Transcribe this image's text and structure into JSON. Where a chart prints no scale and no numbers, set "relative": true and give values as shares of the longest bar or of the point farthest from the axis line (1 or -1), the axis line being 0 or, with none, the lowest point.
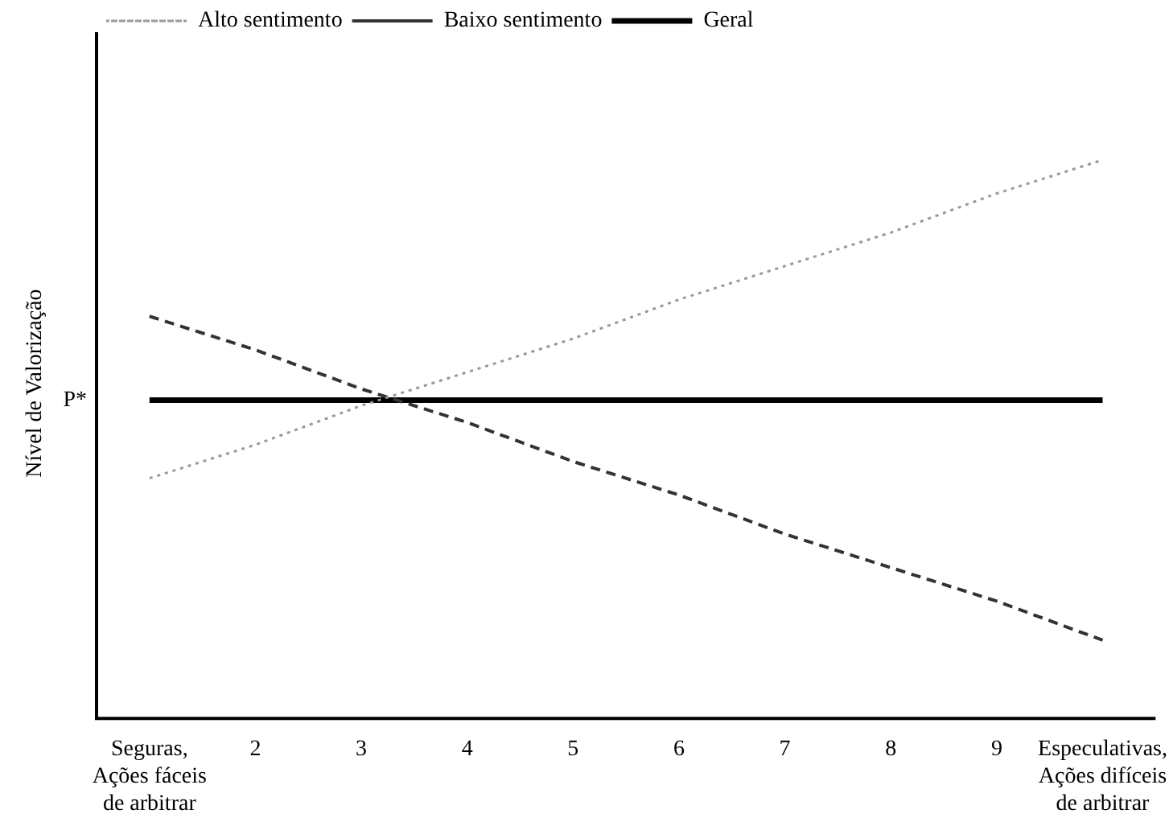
{
  "chart_data": {
    "type": "line",
    "relative": true,
    "ylabel": "Nível de Valorização",
    "categories": [
      "Seguras, Ações fáceis de arbitrar",
      "2",
      "3",
      "4",
      "5",
      "6",
      "7",
      "8",
      "9",
      "Especulativas, Ações difíceis de arbitrar"
    ],
    "series": [
      {
        "name": "Alto sentimento",
        "color": "#999999",
        "line_style": "dotted",
        "values": [
          0.43,
          0.49,
          0.56,
          0.62,
          0.68,
          0.75,
          0.81,
          0.87,
          0.94,
          1.0
        ]
      },
      {
        "name": "Baixo sentimento",
        "color": "#333333",
        "line_style": "dashed",
        "values": [
          0.72,
          0.66,
          0.59,
          0.53,
          0.46,
          0.4,
          0.33,
          0.27,
          0.21,
          0.14
        ]
      },
      {
        "name": "Geral",
        "color": "#000000",
        "line_style": "solid",
        "values": [
          0.57,
          0.57,
          0.57,
          0.57,
          0.57,
          0.57,
          0.57,
          0.57,
          0.57,
          0.57
        ]
      }
    ],
    "annotations": [
      "P*"
    ],
    "legend": "top left",
    "marker": "none",
    "grid": false
  }
}
